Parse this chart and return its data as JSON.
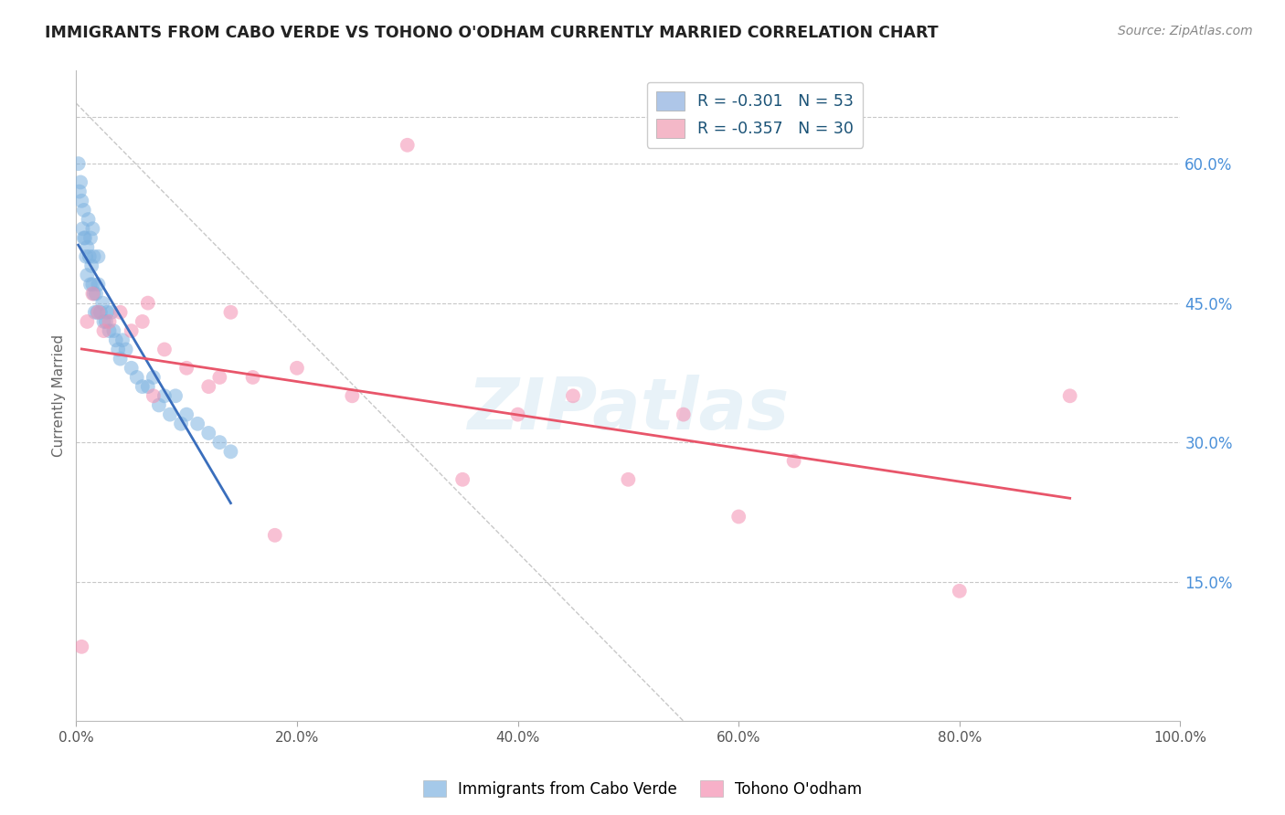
{
  "title": "IMMIGRANTS FROM CABO VERDE VS TOHONO O'ODHAM CURRENTLY MARRIED CORRELATION CHART",
  "source_text": "Source: ZipAtlas.com",
  "ylabel": "Currently Married",
  "xlim": [
    0.0,
    1.0
  ],
  "ylim": [
    0.0,
    0.7
  ],
  "xtick_labels": [
    "0.0%",
    "20.0%",
    "40.0%",
    "60.0%",
    "80.0%",
    "100.0%"
  ],
  "xtick_vals": [
    0.0,
    0.2,
    0.4,
    0.6,
    0.8,
    1.0
  ],
  "ytick_labels": [
    "15.0%",
    "30.0%",
    "45.0%",
    "60.0%"
  ],
  "ytick_vals": [
    0.15,
    0.3,
    0.45,
    0.6
  ],
  "legend_entries": [
    {
      "label": "R = -0.301   N = 53",
      "color": "#aec6e8"
    },
    {
      "label": "R = -0.357   N = 30",
      "color": "#f4b8c8"
    }
  ],
  "cabo_verde_color": "#7fb3e0",
  "tohono_color": "#f48fb1",
  "cabo_verde_line_color": "#3a6ebc",
  "tohono_line_color": "#e8556a",
  "watermark": "ZIPatlas",
  "background_color": "#ffffff",
  "grid_color": "#c8c8c8",
  "cabo_verde_x": [
    0.002,
    0.003,
    0.004,
    0.005,
    0.006,
    0.007,
    0.007,
    0.008,
    0.009,
    0.01,
    0.01,
    0.011,
    0.012,
    0.013,
    0.013,
    0.014,
    0.015,
    0.015,
    0.016,
    0.016,
    0.017,
    0.018,
    0.019,
    0.02,
    0.02,
    0.022,
    0.024,
    0.025,
    0.027,
    0.028,
    0.03,
    0.032,
    0.034,
    0.036,
    0.038,
    0.04,
    0.042,
    0.045,
    0.05,
    0.055,
    0.06,
    0.065,
    0.07,
    0.075,
    0.08,
    0.085,
    0.09,
    0.095,
    0.1,
    0.11,
    0.12,
    0.13,
    0.14
  ],
  "cabo_verde_y": [
    0.6,
    0.57,
    0.58,
    0.56,
    0.53,
    0.55,
    0.52,
    0.52,
    0.5,
    0.51,
    0.48,
    0.54,
    0.5,
    0.47,
    0.52,
    0.49,
    0.47,
    0.53,
    0.46,
    0.5,
    0.44,
    0.46,
    0.44,
    0.47,
    0.5,
    0.44,
    0.45,
    0.43,
    0.43,
    0.44,
    0.42,
    0.44,
    0.42,
    0.41,
    0.4,
    0.39,
    0.41,
    0.4,
    0.38,
    0.37,
    0.36,
    0.36,
    0.37,
    0.34,
    0.35,
    0.33,
    0.35,
    0.32,
    0.33,
    0.32,
    0.31,
    0.3,
    0.29
  ],
  "tohono_x": [
    0.005,
    0.01,
    0.015,
    0.02,
    0.025,
    0.03,
    0.04,
    0.05,
    0.06,
    0.065,
    0.07,
    0.08,
    0.1,
    0.12,
    0.13,
    0.14,
    0.16,
    0.18,
    0.2,
    0.25,
    0.3,
    0.35,
    0.4,
    0.45,
    0.5,
    0.55,
    0.6,
    0.65,
    0.8,
    0.9
  ],
  "tohono_y": [
    0.08,
    0.43,
    0.46,
    0.44,
    0.42,
    0.43,
    0.44,
    0.42,
    0.43,
    0.45,
    0.35,
    0.4,
    0.38,
    0.36,
    0.37,
    0.44,
    0.37,
    0.2,
    0.38,
    0.35,
    0.62,
    0.26,
    0.33,
    0.35,
    0.26,
    0.33,
    0.22,
    0.28,
    0.14,
    0.35
  ],
  "diag_line_x": [
    0.0,
    0.55
  ],
  "diag_line_y": [
    0.665,
    0.0
  ]
}
